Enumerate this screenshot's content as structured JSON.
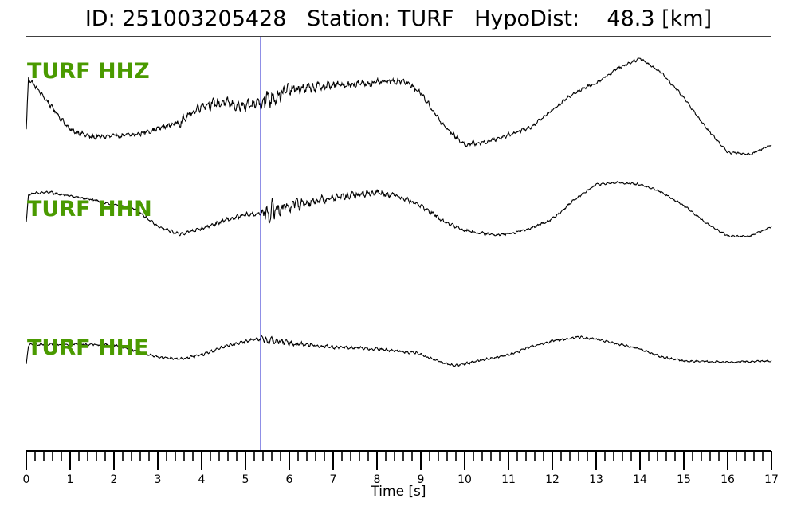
{
  "chart_data": {
    "type": "line",
    "title": "ID: 251003205428   Station: TURF   HypoDist:    48.3 [km]",
    "xlabel": "Time [s]",
    "ylabel": "",
    "xlim": [
      0,
      17
    ],
    "x_ticks": [
      0,
      1,
      2,
      3,
      4,
      5,
      6,
      7,
      8,
      9,
      10,
      11,
      12,
      13,
      14,
      15,
      16,
      17
    ],
    "x_tick_labels": [
      "0",
      "1",
      "2",
      "3",
      "4",
      "5",
      "6",
      "7",
      "8",
      "9",
      "10",
      "11",
      "12",
      "13",
      "14",
      "15",
      "16",
      "17"
    ],
    "minor_tick_step": 0.2,
    "grid": false,
    "pick": {
      "time": 5.35,
      "color": "#1f1fcc"
    },
    "series_color": "#000000",
    "label_color": "#4a9a00",
    "series": [
      {
        "name": "TURF HHZ",
        "envelope": [
          [
            0,
            -0.45
          ],
          [
            0.05,
            0.6
          ],
          [
            0.5,
            0.1
          ],
          [
            1,
            -0.45
          ],
          [
            1.5,
            -0.6
          ],
          [
            2.5,
            -0.55
          ],
          [
            3.5,
            -0.3
          ],
          [
            4,
            0.05
          ],
          [
            4.5,
            0.1
          ],
          [
            5,
            0.0
          ],
          [
            5.4,
            0.15
          ],
          [
            6,
            0.35
          ],
          [
            7,
            0.45
          ],
          [
            8,
            0.5
          ],
          [
            8.6,
            0.55
          ],
          [
            9,
            0.3
          ],
          [
            9.5,
            -0.35
          ],
          [
            10,
            -0.75
          ],
          [
            10.5,
            -0.7
          ],
          [
            11,
            -0.55
          ],
          [
            11.5,
            -0.4
          ],
          [
            12,
            -0.05
          ],
          [
            12.5,
            0.3
          ],
          [
            13,
            0.5
          ],
          [
            13.5,
            0.8
          ],
          [
            14,
            1.0
          ],
          [
            14.5,
            0.7
          ],
          [
            15,
            0.2
          ],
          [
            15.5,
            -0.4
          ],
          [
            16,
            -0.9
          ],
          [
            16.5,
            -0.95
          ],
          [
            17,
            -0.75
          ]
        ],
        "noise": [
          [
            0,
            0.04
          ],
          [
            3,
            0.05
          ],
          [
            3.8,
            0.08
          ],
          [
            5.3,
            0.1
          ],
          [
            5.4,
            0.2
          ],
          [
            6,
            0.12
          ],
          [
            7,
            0.07
          ],
          [
            9,
            0.05
          ],
          [
            12,
            0.03
          ],
          [
            17,
            0.02
          ]
        ]
      },
      {
        "name": "TURF HHN",
        "envelope": [
          [
            0,
            -0.2
          ],
          [
            0.05,
            0.55
          ],
          [
            0.5,
            0.6
          ],
          [
            1,
            0.5
          ],
          [
            1.5,
            0.4
          ],
          [
            2.5,
            0.15
          ],
          [
            3,
            -0.3
          ],
          [
            3.5,
            -0.5
          ],
          [
            4,
            -0.35
          ],
          [
            4.5,
            -0.15
          ],
          [
            5,
            0.0
          ],
          [
            5.4,
            0.05
          ],
          [
            6,
            0.25
          ],
          [
            7,
            0.45
          ],
          [
            8,
            0.6
          ],
          [
            8.5,
            0.5
          ],
          [
            9,
            0.25
          ],
          [
            9.5,
            -0.15
          ],
          [
            10,
            -0.4
          ],
          [
            10.5,
            -0.5
          ],
          [
            11,
            -0.5
          ],
          [
            11.5,
            -0.35
          ],
          [
            12,
            -0.1
          ],
          [
            12.5,
            0.4
          ],
          [
            13,
            0.8
          ],
          [
            13.5,
            0.85
          ],
          [
            14,
            0.8
          ],
          [
            14.5,
            0.6
          ],
          [
            15,
            0.25
          ],
          [
            15.5,
            -0.2
          ],
          [
            16,
            -0.55
          ],
          [
            16.5,
            -0.55
          ],
          [
            17,
            -0.3
          ]
        ],
        "noise": [
          [
            0,
            0.03
          ],
          [
            3,
            0.03
          ],
          [
            5.3,
            0.06
          ],
          [
            5.45,
            0.28
          ],
          [
            6,
            0.15
          ],
          [
            7,
            0.08
          ],
          [
            9,
            0.05
          ],
          [
            11,
            0.03
          ],
          [
            17,
            0.02
          ]
        ]
      },
      {
        "name": "TURF HHE",
        "envelope": [
          [
            0,
            -0.4
          ],
          [
            0.05,
            0.1
          ],
          [
            1,
            0.12
          ],
          [
            2,
            0.1
          ],
          [
            2.5,
            -0.05
          ],
          [
            3,
            -0.2
          ],
          [
            3.5,
            -0.25
          ],
          [
            4,
            -0.15
          ],
          [
            4.5,
            0.05
          ],
          [
            5,
            0.2
          ],
          [
            5.4,
            0.25
          ],
          [
            6,
            0.15
          ],
          [
            7,
            0.05
          ],
          [
            8,
            0.0
          ],
          [
            8.9,
            -0.1
          ],
          [
            9.5,
            -0.35
          ],
          [
            9.8,
            -0.42
          ],
          [
            10.5,
            -0.25
          ],
          [
            11,
            -0.15
          ],
          [
            11.5,
            0.05
          ],
          [
            12,
            0.2
          ],
          [
            12.6,
            0.3
          ],
          [
            13,
            0.25
          ],
          [
            13.5,
            0.12
          ],
          [
            14,
            0.0
          ],
          [
            14.5,
            -0.2
          ],
          [
            15,
            -0.3
          ],
          [
            16,
            -0.33
          ],
          [
            17,
            -0.3
          ]
        ],
        "noise": [
          [
            0,
            0.025
          ],
          [
            3,
            0.025
          ],
          [
            5.3,
            0.04
          ],
          [
            5.45,
            0.09
          ],
          [
            6,
            0.05
          ],
          [
            7,
            0.04
          ],
          [
            9,
            0.03
          ],
          [
            17,
            0.02
          ]
        ]
      }
    ]
  }
}
